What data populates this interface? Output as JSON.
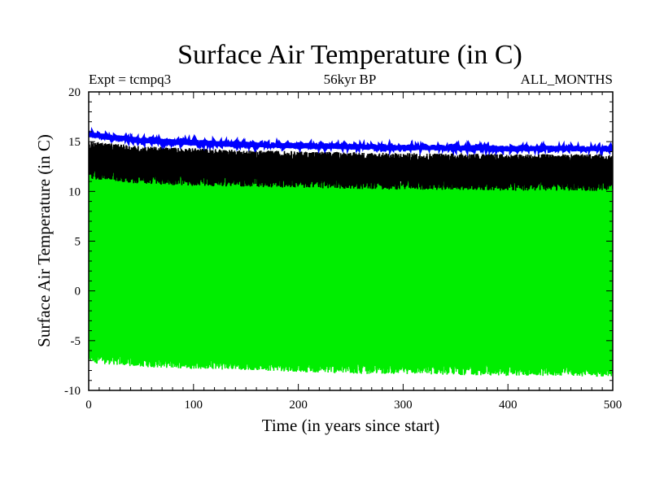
{
  "chart_data": {
    "type": "line",
    "title": "Surface Air Temperature (in C)",
    "subtitle_left": "Expt = tcmpq3",
    "subtitle_center": "56kyr BP",
    "subtitle_right": "ALL_MONTHS",
    "xlabel": "Time (in years since start)",
    "ylabel": "Surface Air Temperature (in C)",
    "xlim": [
      0,
      500
    ],
    "ylim": [
      -10,
      20
    ],
    "xticks": [
      0,
      100,
      200,
      300,
      400,
      500
    ],
    "xtick_labels": [
      "0",
      "100",
      "200",
      "300",
      "400",
      "500"
    ],
    "yticks": [
      -10,
      -5,
      0,
      5,
      10,
      15,
      20
    ],
    "ytick_labels": [
      "-10",
      "-5",
      "0",
      "5",
      "10",
      "15",
      "20"
    ],
    "grid": false,
    "series": [
      {
        "color": "#00ee00",
        "kind": "band",
        "x": [
          0,
          50,
          100,
          150,
          200,
          250,
          300,
          350,
          400,
          450,
          500
        ],
        "upper": [
          12.4,
          11.6,
          11.4,
          11.3,
          11.2,
          11.0,
          10.9,
          10.9,
          10.9,
          10.8,
          10.8
        ],
        "lower": [
          -6.6,
          -7.0,
          -7.2,
          -7.3,
          -7.5,
          -7.7,
          -7.7,
          -7.8,
          -7.9,
          -7.9,
          -8.0
        ]
      },
      {
        "color": "#000000",
        "kind": "band",
        "x": [
          0,
          50,
          100,
          150,
          200,
          250,
          300,
          350,
          400,
          450,
          500
        ],
        "upper": [
          14.6,
          14.1,
          13.9,
          13.7,
          13.6,
          13.5,
          13.4,
          13.4,
          13.3,
          13.3,
          13.3
        ],
        "lower": [
          11.9,
          11.4,
          11.2,
          11.1,
          11.0,
          10.9,
          10.8,
          10.8,
          10.7,
          10.7,
          10.7
        ]
      },
      {
        "color": "#0000ff",
        "kind": "line",
        "x": [
          0,
          50,
          100,
          150,
          200,
          250,
          300,
          350,
          400,
          450,
          500
        ],
        "values": [
          15.7,
          15.1,
          14.9,
          14.7,
          14.6,
          14.5,
          14.4,
          14.4,
          14.3,
          14.3,
          14.3
        ]
      }
    ]
  }
}
